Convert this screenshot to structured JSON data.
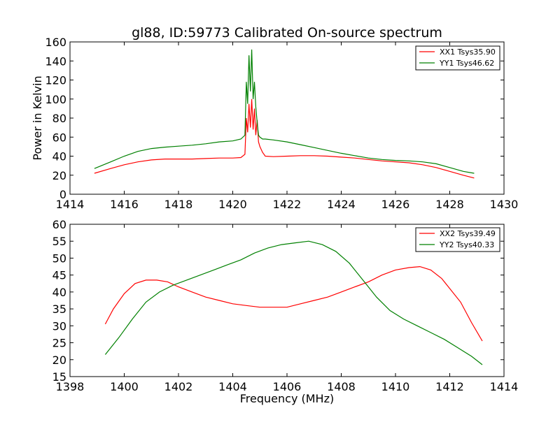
{
  "chart_data": [
    {
      "type": "line",
      "title": "gl88, ID:59773 Calibrated On-source spectrum",
      "xlabel": "",
      "ylabel": "Power in Kelvin",
      "xlim": [
        1414,
        1430
      ],
      "ylim": [
        0,
        160
      ],
      "xticks": [
        1414,
        1416,
        1418,
        1420,
        1422,
        1424,
        1426,
        1428,
        1430
      ],
      "yticks": [
        0,
        20,
        40,
        60,
        80,
        100,
        120,
        140,
        160
      ],
      "legend_position": "top-right",
      "series": [
        {
          "name": "XX1 Tsys35.90",
          "color": "#ff0000",
          "x": [
            1414.9,
            1415.5,
            1416.0,
            1416.5,
            1417.0,
            1417.5,
            1418.0,
            1418.5,
            1419.0,
            1419.5,
            1420.0,
            1420.3,
            1420.45,
            1420.5,
            1420.55,
            1420.6,
            1420.65,
            1420.7,
            1420.75,
            1420.8,
            1420.85,
            1420.9,
            1420.95,
            1421.0,
            1421.1,
            1421.2,
            1421.5,
            1422.0,
            1422.5,
            1423.0,
            1423.5,
            1424.0,
            1424.5,
            1425.0,
            1425.5,
            1426.0,
            1426.5,
            1427.0,
            1427.5,
            1428.0,
            1428.5,
            1428.9
          ],
          "y": [
            22,
            27,
            31,
            34,
            36,
            37,
            37,
            37,
            37.5,
            38,
            38,
            38.5,
            42,
            80,
            65,
            95,
            70,
            100,
            68,
            90,
            62,
            78,
            55,
            50,
            44,
            40,
            39.5,
            40,
            40.5,
            40.5,
            40,
            39,
            38,
            36.5,
            35,
            34,
            33,
            31,
            28,
            24,
            20,
            17
          ]
        },
        {
          "name": "YY1 Tsys46.62",
          "color": "#008000",
          "x": [
            1414.9,
            1415.5,
            1416.0,
            1416.5,
            1417.0,
            1417.5,
            1418.0,
            1418.5,
            1419.0,
            1419.5,
            1420.0,
            1420.3,
            1420.45,
            1420.5,
            1420.55,
            1420.6,
            1420.65,
            1420.7,
            1420.75,
            1420.8,
            1420.85,
            1420.9,
            1420.95,
            1421.0,
            1421.1,
            1421.2,
            1421.5,
            1422.0,
            1422.5,
            1423.0,
            1423.5,
            1424.0,
            1424.5,
            1425.0,
            1425.5,
            1426.0,
            1426.5,
            1427.0,
            1427.5,
            1428.0,
            1428.5,
            1428.9
          ],
          "y": [
            27,
            34,
            40,
            45,
            48,
            49.5,
            50.5,
            51.5,
            53,
            55,
            56,
            58,
            62,
            118,
            95,
            146,
            108,
            152,
            100,
            118,
            92,
            75,
            62,
            60,
            58,
            58,
            57,
            55,
            52,
            49,
            46,
            43,
            40.5,
            38,
            36.5,
            35.5,
            35,
            34,
            32,
            28,
            24,
            22
          ]
        }
      ]
    },
    {
      "type": "line",
      "title": "",
      "xlabel": "Frequency (MHz)",
      "ylabel": "",
      "xlim": [
        1398,
        1414
      ],
      "ylim": [
        15,
        60
      ],
      "xticks": [
        1398,
        1400,
        1402,
        1404,
        1406,
        1408,
        1410,
        1412,
        1414
      ],
      "yticks": [
        15,
        20,
        25,
        30,
        35,
        40,
        45,
        50,
        55,
        60
      ],
      "legend_position": "top-right",
      "series": [
        {
          "name": "XX2 Tsys39.49",
          "color": "#ff0000",
          "x": [
            1399.3,
            1399.6,
            1400.0,
            1400.4,
            1400.8,
            1401.2,
            1401.6,
            1402.0,
            1402.5,
            1403.0,
            1403.5,
            1404.0,
            1404.5,
            1405.0,
            1405.5,
            1406.0,
            1406.5,
            1407.0,
            1407.5,
            1408.0,
            1408.5,
            1409.0,
            1409.5,
            1410.0,
            1410.5,
            1410.9,
            1411.3,
            1411.7,
            1412.0,
            1412.4,
            1412.8,
            1413.2
          ],
          "y": [
            30.5,
            35,
            39.5,
            42.5,
            43.5,
            43.5,
            43,
            41.5,
            40,
            38.5,
            37.5,
            36.5,
            36,
            35.5,
            35.5,
            35.5,
            36.5,
            37.5,
            38.5,
            40,
            41.5,
            43,
            45,
            46.5,
            47.2,
            47.5,
            46.5,
            44,
            41,
            37,
            31,
            25.5
          ]
        },
        {
          "name": "YY2 Tsys40.33",
          "color": "#008000",
          "x": [
            1399.3,
            1399.8,
            1400.3,
            1400.8,
            1401.3,
            1401.8,
            1402.3,
            1402.8,
            1403.3,
            1403.8,
            1404.3,
            1404.8,
            1405.3,
            1405.8,
            1406.3,
            1406.8,
            1407.3,
            1407.8,
            1408.3,
            1408.8,
            1409.3,
            1409.8,
            1410.3,
            1410.8,
            1411.3,
            1411.8,
            1412.3,
            1412.8,
            1413.2
          ],
          "y": [
            21.5,
            26.5,
            32,
            37,
            40,
            42,
            43.5,
            45,
            46.5,
            48,
            49.5,
            51.5,
            53,
            54,
            54.5,
            55,
            54,
            52,
            48.5,
            43.5,
            38.5,
            34.5,
            32,
            30,
            28,
            26,
            23.5,
            21,
            18.5
          ]
        }
      ]
    }
  ]
}
